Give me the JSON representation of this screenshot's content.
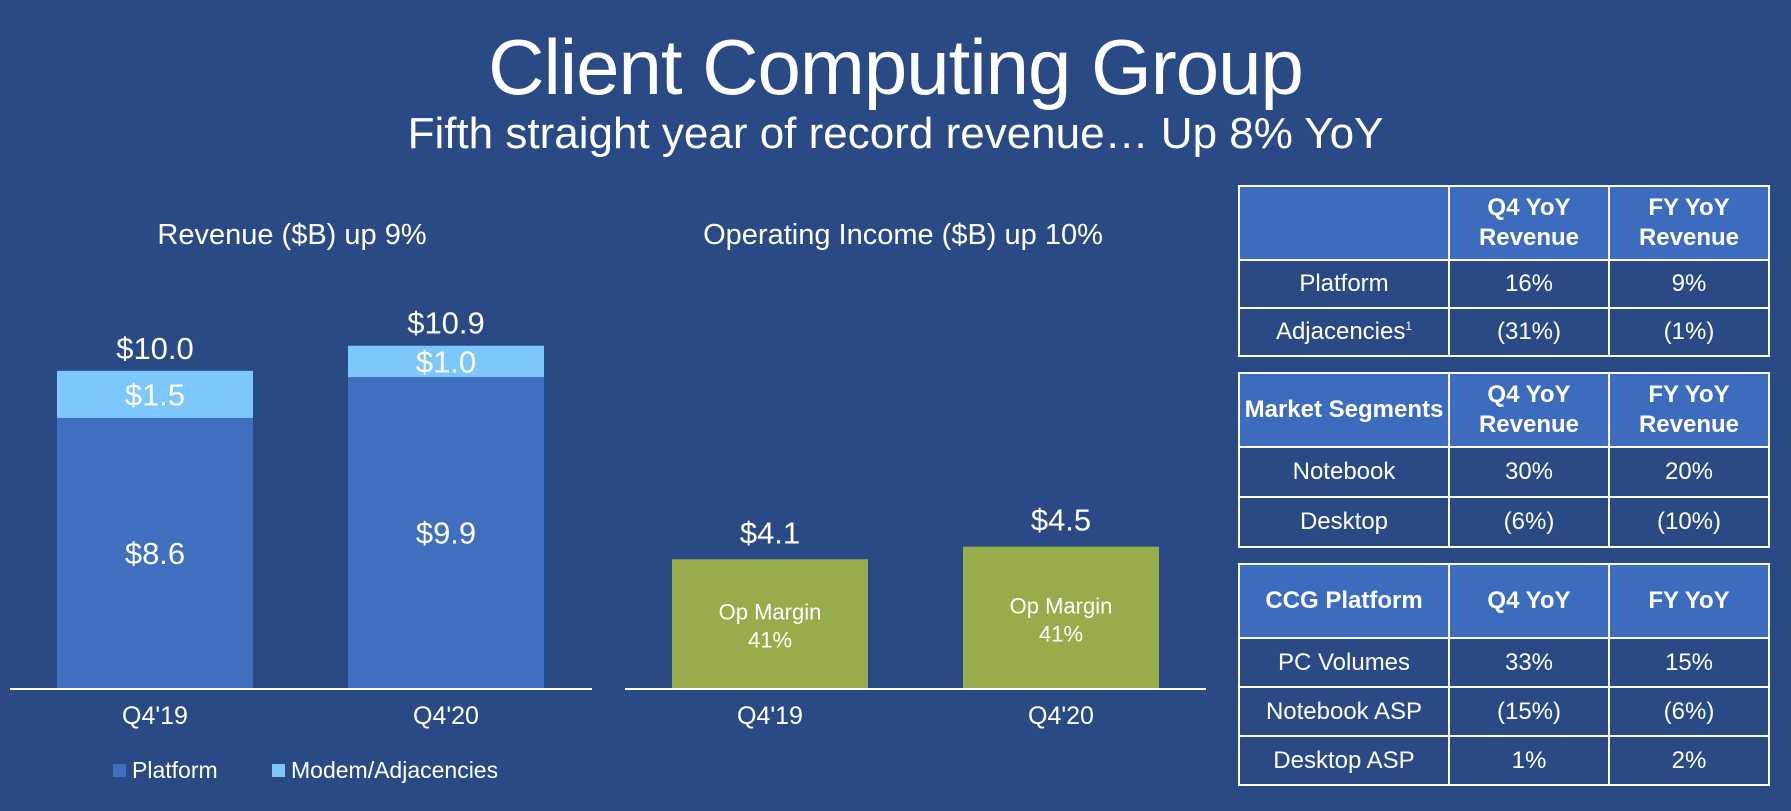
{
  "title": "Client Computing Group",
  "subtitle": "Fifth straight year of record revenue… Up 8% YoY",
  "colors": {
    "background": "#2a4a85",
    "platform": "#3f6fbe",
    "adjacencies": "#7cc7fb",
    "op_income": "#97ad4b",
    "table_header": "#3d6bbd"
  },
  "chart_data": [
    {
      "type": "bar",
      "title": "Revenue ($B) up 9%",
      "stacked": true,
      "categories": [
        "Q4'19",
        "Q4'20"
      ],
      "series": [
        {
          "name": "Platform",
          "values": [
            8.6,
            9.9
          ],
          "labels": [
            "$8.6",
            "$9.9"
          ]
        },
        {
          "name": "Modem/Adjacencies",
          "values": [
            1.5,
            1.0
          ],
          "labels": [
            "$1.5",
            "$1.0"
          ]
        }
      ],
      "totals": [
        10.0,
        10.9
      ],
      "total_labels": [
        "$10.0",
        "$10.9"
      ],
      "legend": "bottom"
    },
    {
      "type": "bar",
      "title": "Operating Income ($B) up 10%",
      "categories": [
        "Q4'19",
        "Q4'20"
      ],
      "values": [
        4.1,
        4.5
      ],
      "value_labels": [
        "$4.1",
        "$4.5"
      ],
      "inner_labels": [
        [
          "Op Margin",
          "41%"
        ],
        [
          "Op Margin",
          "41%"
        ]
      ]
    },
    {
      "type": "table",
      "header": [
        "",
        "Q4 YoY Revenue",
        "FY YoY Revenue"
      ],
      "rows": [
        {
          "label": "Platform",
          "sup": "",
          "q4": "16%",
          "fy": "9%"
        },
        {
          "label": "Adjacencies",
          "sup": "1",
          "q4": "(31%)",
          "fy": "(1%)"
        }
      ]
    },
    {
      "type": "table",
      "header": [
        "Market Segments",
        "Q4 YoY Revenue",
        "FY YoY Revenue"
      ],
      "rows": [
        {
          "label": "Notebook",
          "q4": "30%",
          "fy": "20%"
        },
        {
          "label": "Desktop",
          "q4": "(6%)",
          "fy": "(10%)"
        }
      ]
    },
    {
      "type": "table",
      "header": [
        "CCG Platform",
        "Q4 YoY",
        "FY YoY"
      ],
      "rows": [
        {
          "label": "PC Volumes",
          "q4": "33%",
          "fy": "15%"
        },
        {
          "label": "Notebook ASP",
          "q4": "(15%)",
          "fy": "(6%)"
        },
        {
          "label": "Desktop ASP",
          "q4": "1%",
          "fy": "2%"
        }
      ]
    }
  ]
}
